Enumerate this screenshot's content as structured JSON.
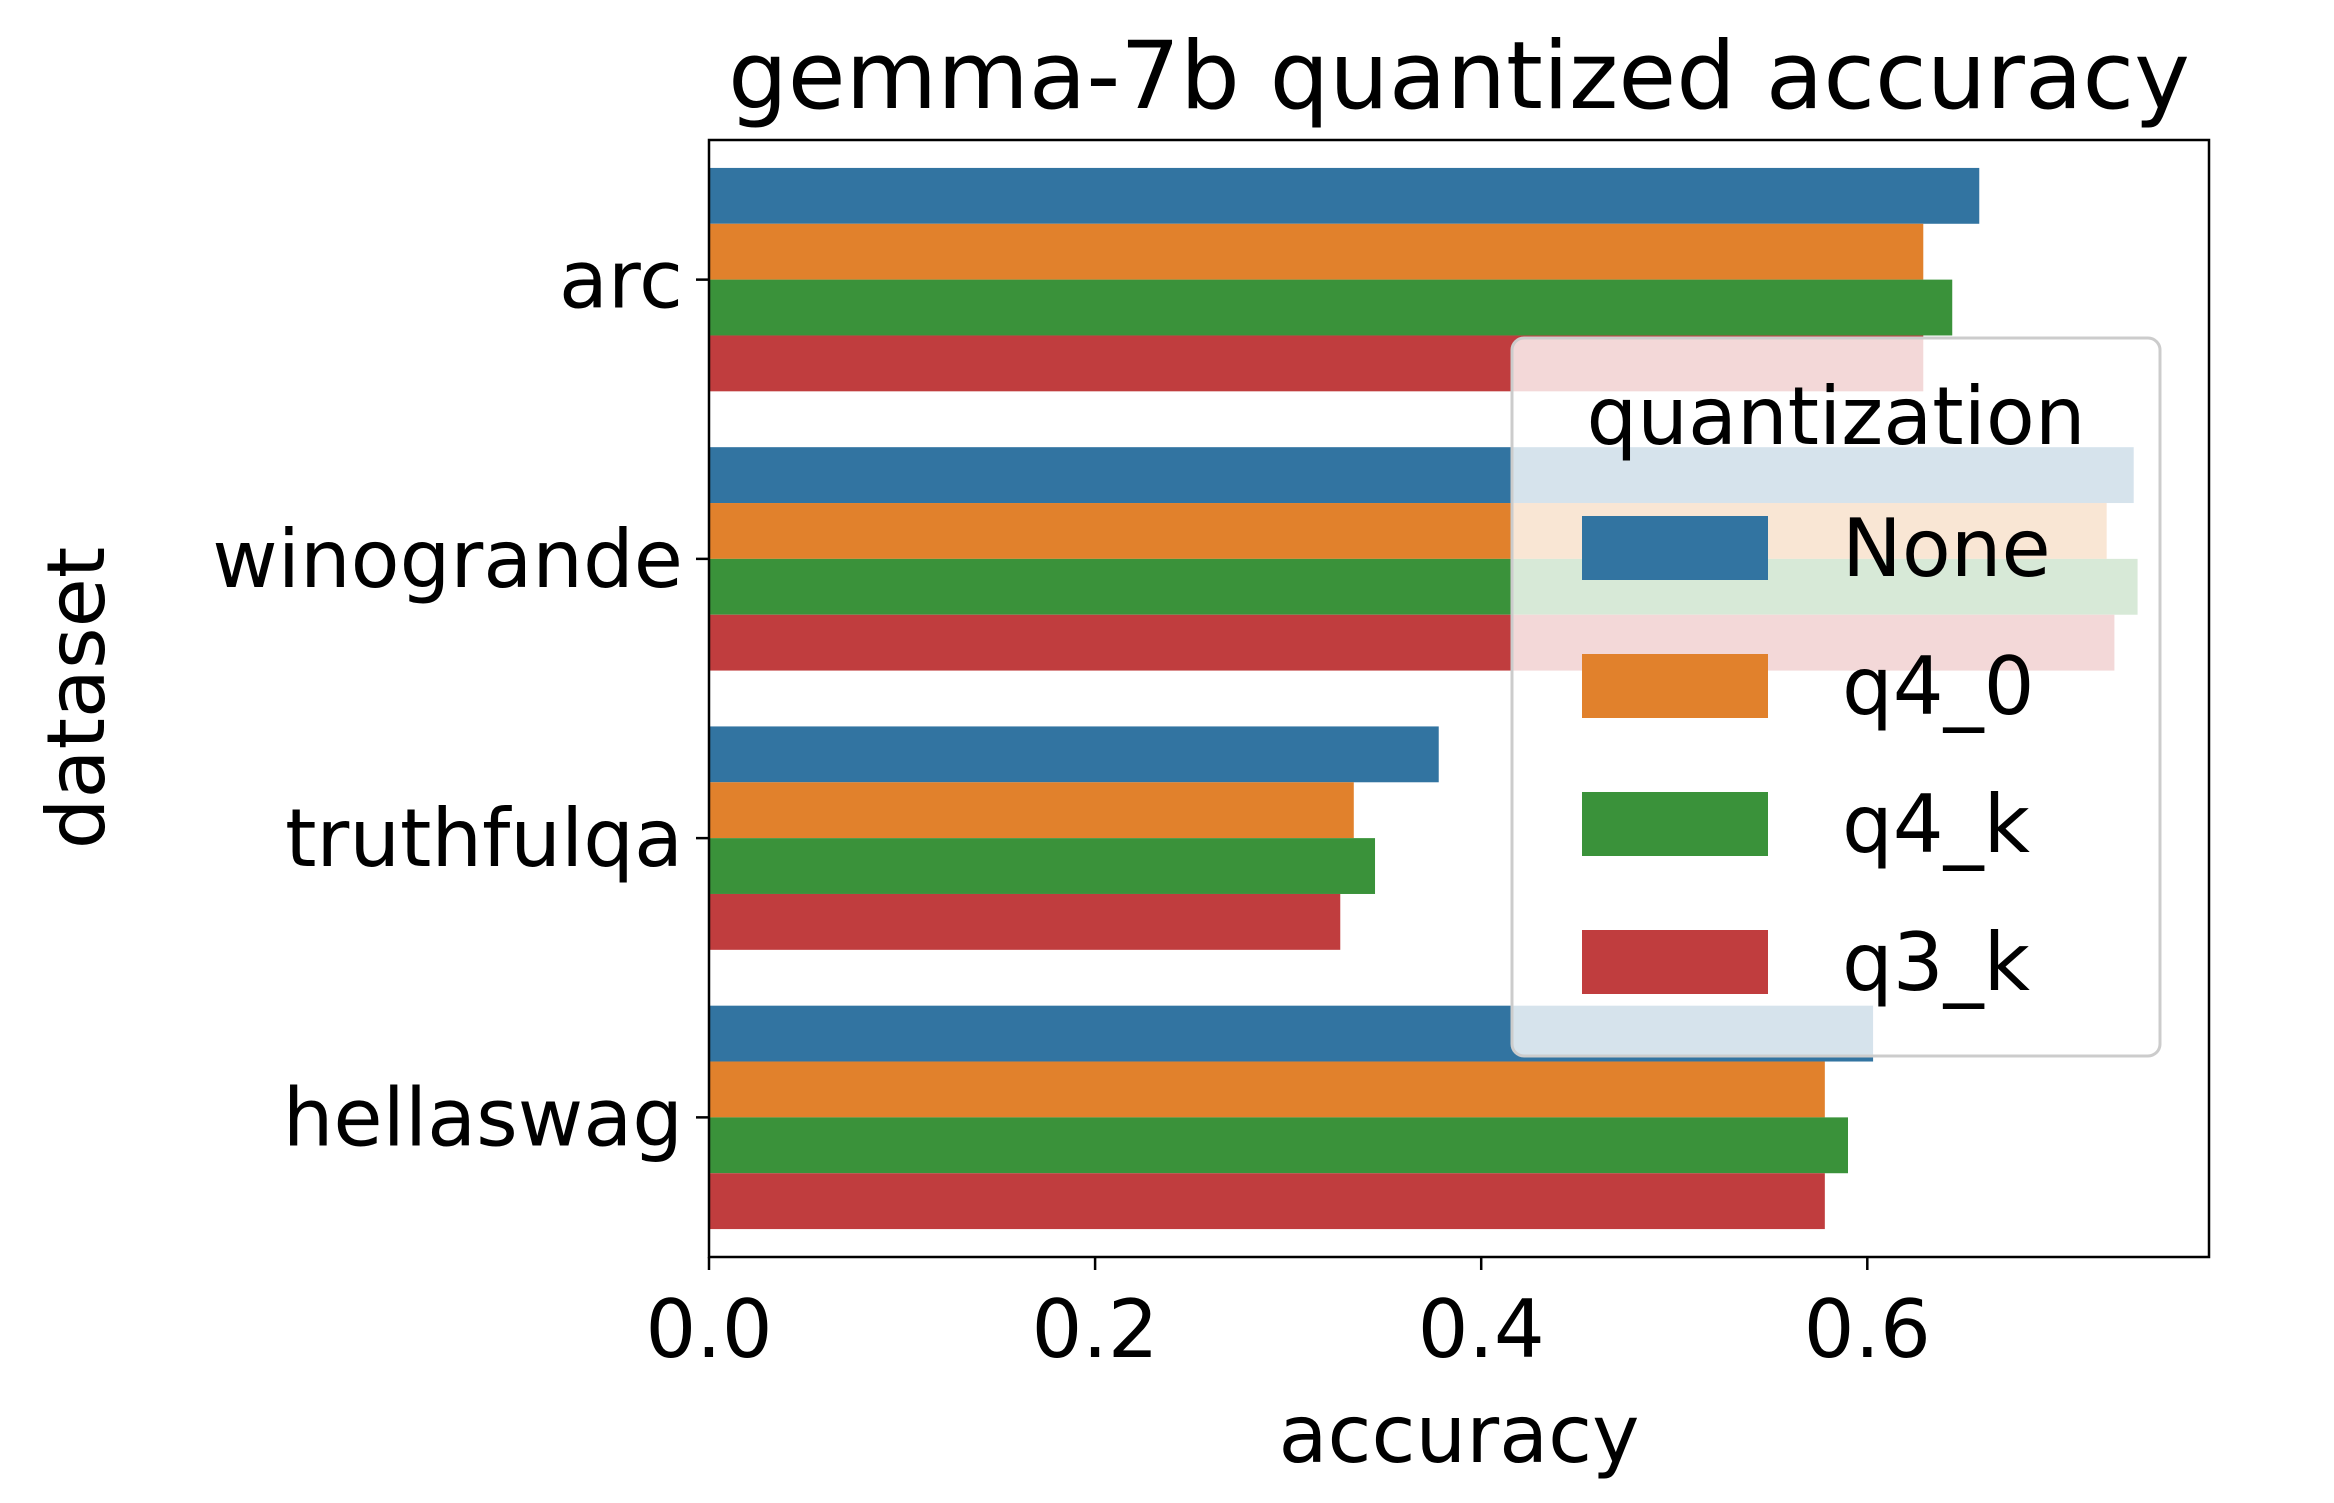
{
  "chart_data": {
    "type": "bar",
    "orientation": "horizontal",
    "title": "gemma-7b quantized accuracy",
    "xlabel": "accuracy",
    "ylabel": "dataset",
    "categories": [
      "arc",
      "winogrande",
      "truthfulqa",
      "hellaswag"
    ],
    "xlim": [
      0,
      0.777
    ],
    "xticks": [
      "0.0",
      "0.2",
      "0.4",
      "0.6"
    ],
    "xtick_values": [
      0.0,
      0.2,
      0.4,
      0.6
    ],
    "grid": false,
    "legend": {
      "title": "quantization",
      "placement": "center-right"
    },
    "series": [
      {
        "name": "None",
        "color": "#3274a1",
        "values": [
          0.658,
          0.738,
          0.378,
          0.603
        ]
      },
      {
        "name": "q4_0",
        "color": "#e1812c",
        "values": [
          0.629,
          0.724,
          0.334,
          0.578
        ]
      },
      {
        "name": "q4_k",
        "color": "#3a923a",
        "values": [
          0.644,
          0.74,
          0.345,
          0.59
        ]
      },
      {
        "name": "q3_k",
        "color": "#c03d3e",
        "values": [
          0.629,
          0.728,
          0.327,
          0.578
        ]
      }
    ]
  }
}
